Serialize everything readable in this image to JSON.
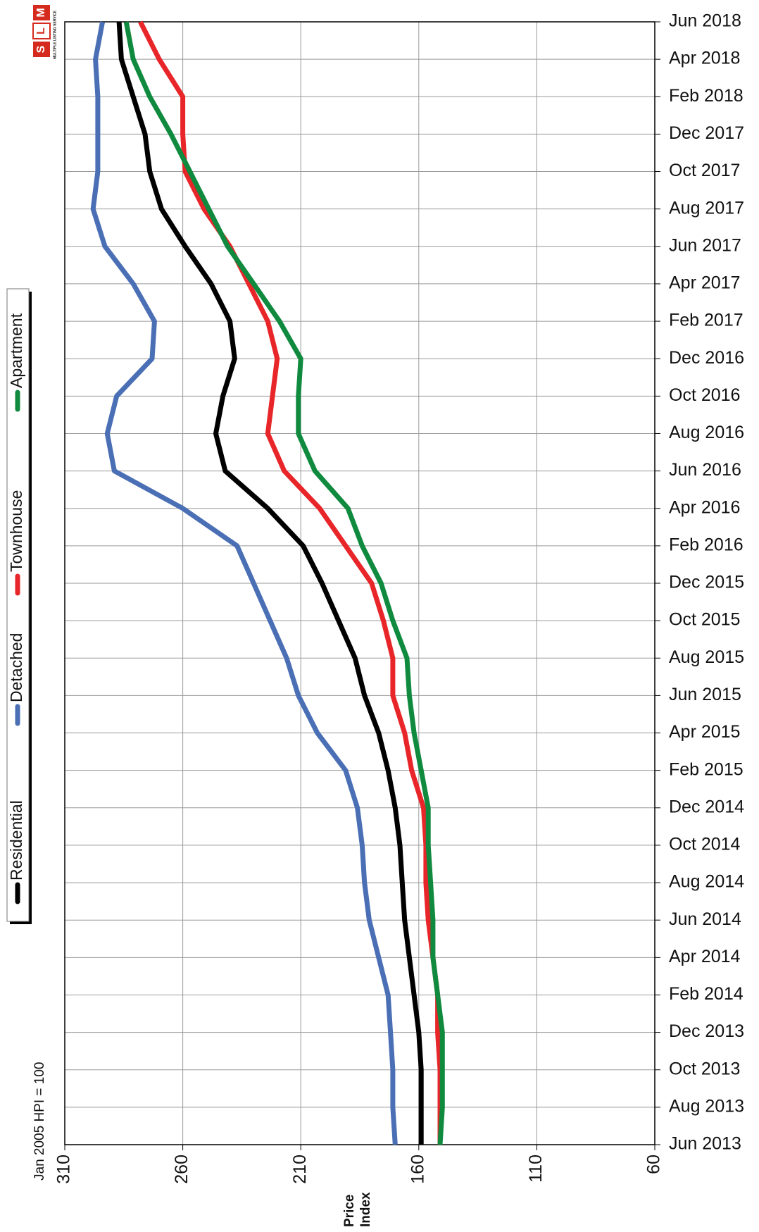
{
  "logo": {
    "letters": [
      "M",
      "L",
      "S"
    ],
    "caption": "MULTIPLE LISTING SERVICE"
  },
  "chart_data": {
    "type": "line",
    "note": "Jan 2005 HPI = 100",
    "x_label": [
      "Price",
      "Index"
    ],
    "categories": [
      "Jun 2013",
      "Aug 2013",
      "Oct 2013",
      "Dec 2013",
      "Feb 2014",
      "Apr 2014",
      "Jun 2014",
      "Aug 2014",
      "Oct 2014",
      "Dec 2014",
      "Feb 2015",
      "Apr 2015",
      "Jun 2015",
      "Aug 2015",
      "Oct 2015",
      "Dec 2015",
      "Feb 2016",
      "Apr 2016",
      "Jun 2016",
      "Aug 2016",
      "Oct 2016",
      "Dec 2016",
      "Feb 2017",
      "Apr 2017",
      "Jun 2017",
      "Aug 2017",
      "Oct 2017",
      "Dec 2017",
      "Feb 2018",
      "Apr 2018",
      "Jun 2018"
    ],
    "series": [
      {
        "name": "Residential",
        "color": "#000000",
        "values": [
          159,
          159,
          159,
          160,
          162,
          164,
          166,
          167,
          168,
          170,
          173,
          177,
          183,
          187,
          194,
          201,
          209,
          224,
          242,
          246,
          243,
          238,
          240,
          248,
          259,
          269,
          274,
          276,
          281,
          286,
          287
        ]
      },
      {
        "name": "Detached",
        "color": "#4a6fb5",
        "values": [
          170,
          171,
          171,
          172,
          173,
          177,
          181,
          183,
          184,
          186,
          191,
          203,
          211,
          216,
          223,
          230,
          237,
          260,
          289,
          292,
          288,
          273,
          272,
          281,
          293,
          298,
          296,
          296,
          296,
          297,
          294
        ]
      },
      {
        "name": "Townhouse",
        "color": "#e8262a",
        "values": [
          151,
          151,
          151,
          152,
          152,
          154,
          156,
          157,
          157,
          158,
          163,
          166,
          171,
          171,
          175,
          180,
          191,
          202,
          217,
          224,
          222,
          220,
          224,
          232,
          240,
          251,
          259,
          260,
          260,
          270,
          278
        ]
      },
      {
        "name": "Apartment",
        "color": "#0f8a3e",
        "values": [
          151,
          150,
          150,
          150,
          152,
          154,
          154,
          155,
          156,
          156,
          159,
          162,
          164,
          165,
          171,
          176,
          184,
          190,
          204,
          211,
          211,
          210,
          219,
          230,
          241,
          249,
          257,
          265,
          274,
          281,
          284
        ]
      }
    ],
    "xlim": [
      310,
      60
    ],
    "xticks": [
      310,
      260,
      210,
      160,
      110,
      60
    ],
    "grid": true
  }
}
